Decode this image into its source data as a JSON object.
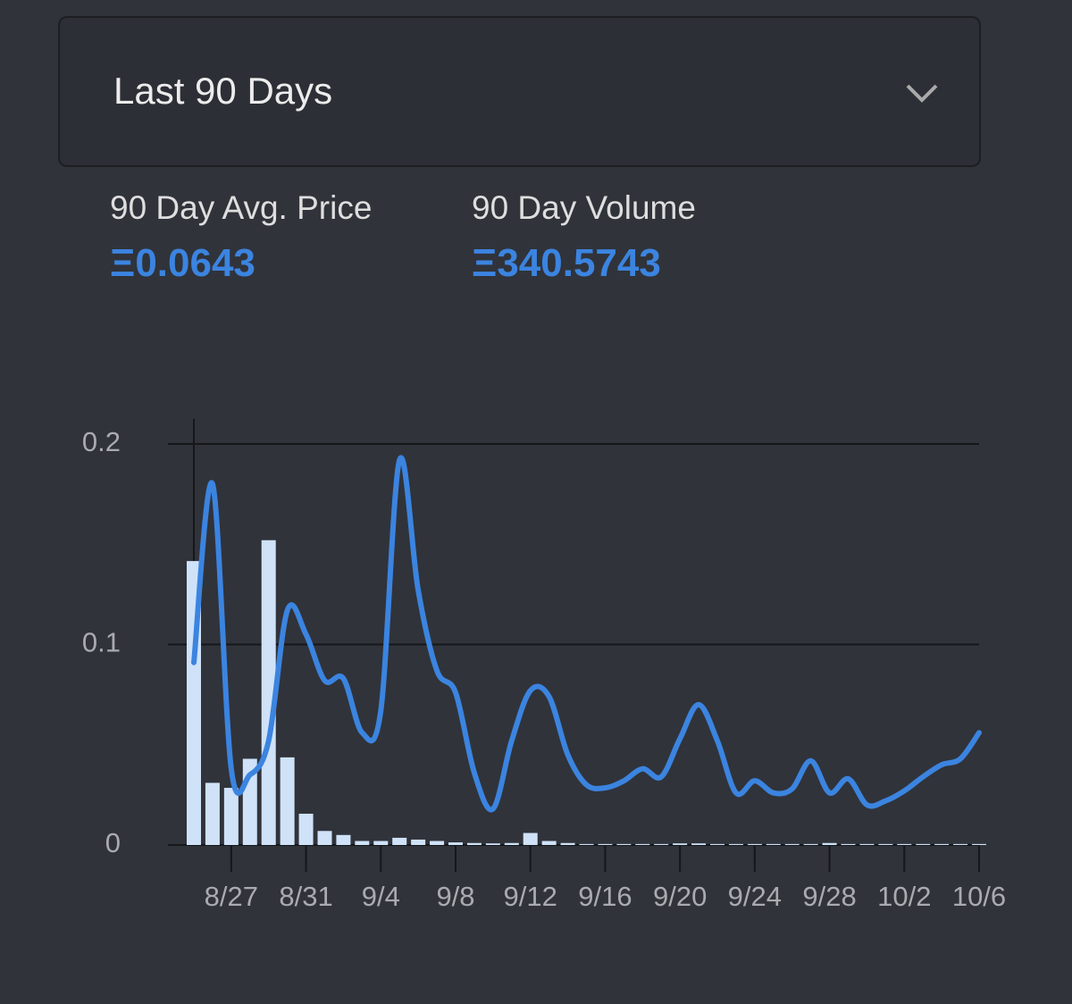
{
  "dropdown": {
    "label": "Last 90 Days"
  },
  "stats": [
    {
      "label": "90 Day Avg. Price",
      "value": "Ξ0.0643"
    },
    {
      "label": "90 Day Volume",
      "value": "Ξ340.5743"
    }
  ],
  "chart_data": {
    "type": "combo",
    "categories": [
      null,
      null,
      "8/27",
      null,
      null,
      null,
      "8/31",
      null,
      null,
      null,
      "9/4",
      null,
      null,
      null,
      "9/8",
      null,
      null,
      null,
      "9/12",
      null,
      null,
      null,
      "9/16",
      null,
      null,
      null,
      "9/20",
      null,
      null,
      null,
      "9/24",
      null,
      null,
      null,
      "9/28",
      null,
      null,
      null,
      "10/2",
      null,
      null,
      null,
      "10/6"
    ],
    "series": [
      {
        "type": "bar",
        "color": "#cfe2f8",
        "values": [
          0.1416,
          0.031,
          0.0285,
          0.043,
          0.152,
          0.0437,
          0.0156,
          0.007,
          0.005,
          0.002,
          0.002,
          0.0036,
          0.0027,
          0.002,
          0.0013,
          0.001,
          0.0008,
          0.001,
          0.006,
          0.002,
          0.001,
          0.0005,
          0.0005,
          0.0005,
          0.0005,
          0.0005,
          0.0008,
          0.0008,
          0.0005,
          0.0005,
          0.0005,
          0.0005,
          0.0005,
          0.0005,
          0.001,
          0.0005,
          0.0005,
          0.0005,
          0.0005,
          0.0005,
          0.0005,
          0.0005,
          0.0005
        ]
      },
      {
        "type": "line",
        "color": "#3b84e0",
        "values": [
          0.091,
          0.18,
          0.038,
          0.035,
          0.052,
          0.117,
          0.105,
          0.082,
          0.083,
          0.056,
          0.067,
          0.192,
          0.127,
          0.087,
          0.076,
          0.036,
          0.018,
          0.052,
          0.077,
          0.074,
          0.045,
          0.03,
          0.0285,
          0.032,
          0.038,
          0.034,
          0.053,
          0.07,
          0.052,
          0.026,
          0.032,
          0.026,
          0.028,
          0.042,
          0.026,
          0.033,
          0.02,
          0.022,
          0.027,
          0.034,
          0.04,
          0.043,
          0.056
        ]
      }
    ],
    "ylim": [
      0,
      0.2
    ],
    "yticks": [
      0,
      0.1,
      0.2
    ],
    "grid": true
  }
}
